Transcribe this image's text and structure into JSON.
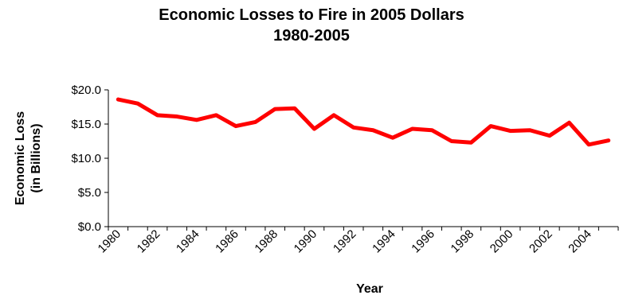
{
  "chart_data": {
    "type": "line",
    "title_lines": [
      "Economic Losses to Fire in 2005 Dollars",
      "1980-2005"
    ],
    "xlabel": "Year",
    "ylabel_lines": [
      "Economic Loss",
      "(in Billions)"
    ],
    "ylim": [
      0,
      20
    ],
    "yticks": [
      0,
      5,
      10,
      15,
      20
    ],
    "ytick_labels": [
      "$0.0",
      "$5.0",
      "$10.0",
      "$15.0",
      "$20.0"
    ],
    "xtick_labels": [
      "1980",
      "1982",
      "1984",
      "1986",
      "1988",
      "1990",
      "1992",
      "1994",
      "1996",
      "1998",
      "2000",
      "2002",
      "2004"
    ],
    "x": [
      1980,
      1981,
      1982,
      1983,
      1984,
      1985,
      1986,
      1987,
      1988,
      1989,
      1990,
      1991,
      1992,
      1993,
      1994,
      1995,
      1996,
      1997,
      1998,
      1999,
      2000,
      2001,
      2002,
      2003,
      2004,
      2005
    ],
    "series": [
      {
        "values": [
          18.6,
          18.0,
          16.3,
          16.1,
          15.6,
          16.3,
          14.7,
          15.3,
          17.2,
          17.3,
          14.3,
          16.3,
          14.5,
          14.1,
          13.0,
          14.3,
          14.1,
          12.5,
          12.3,
          14.7,
          14.0,
          14.1,
          13.3,
          15.2,
          12.0,
          12.6
        ],
        "color": "#ff0000"
      }
    ],
    "grid": false,
    "legend": "none"
  }
}
